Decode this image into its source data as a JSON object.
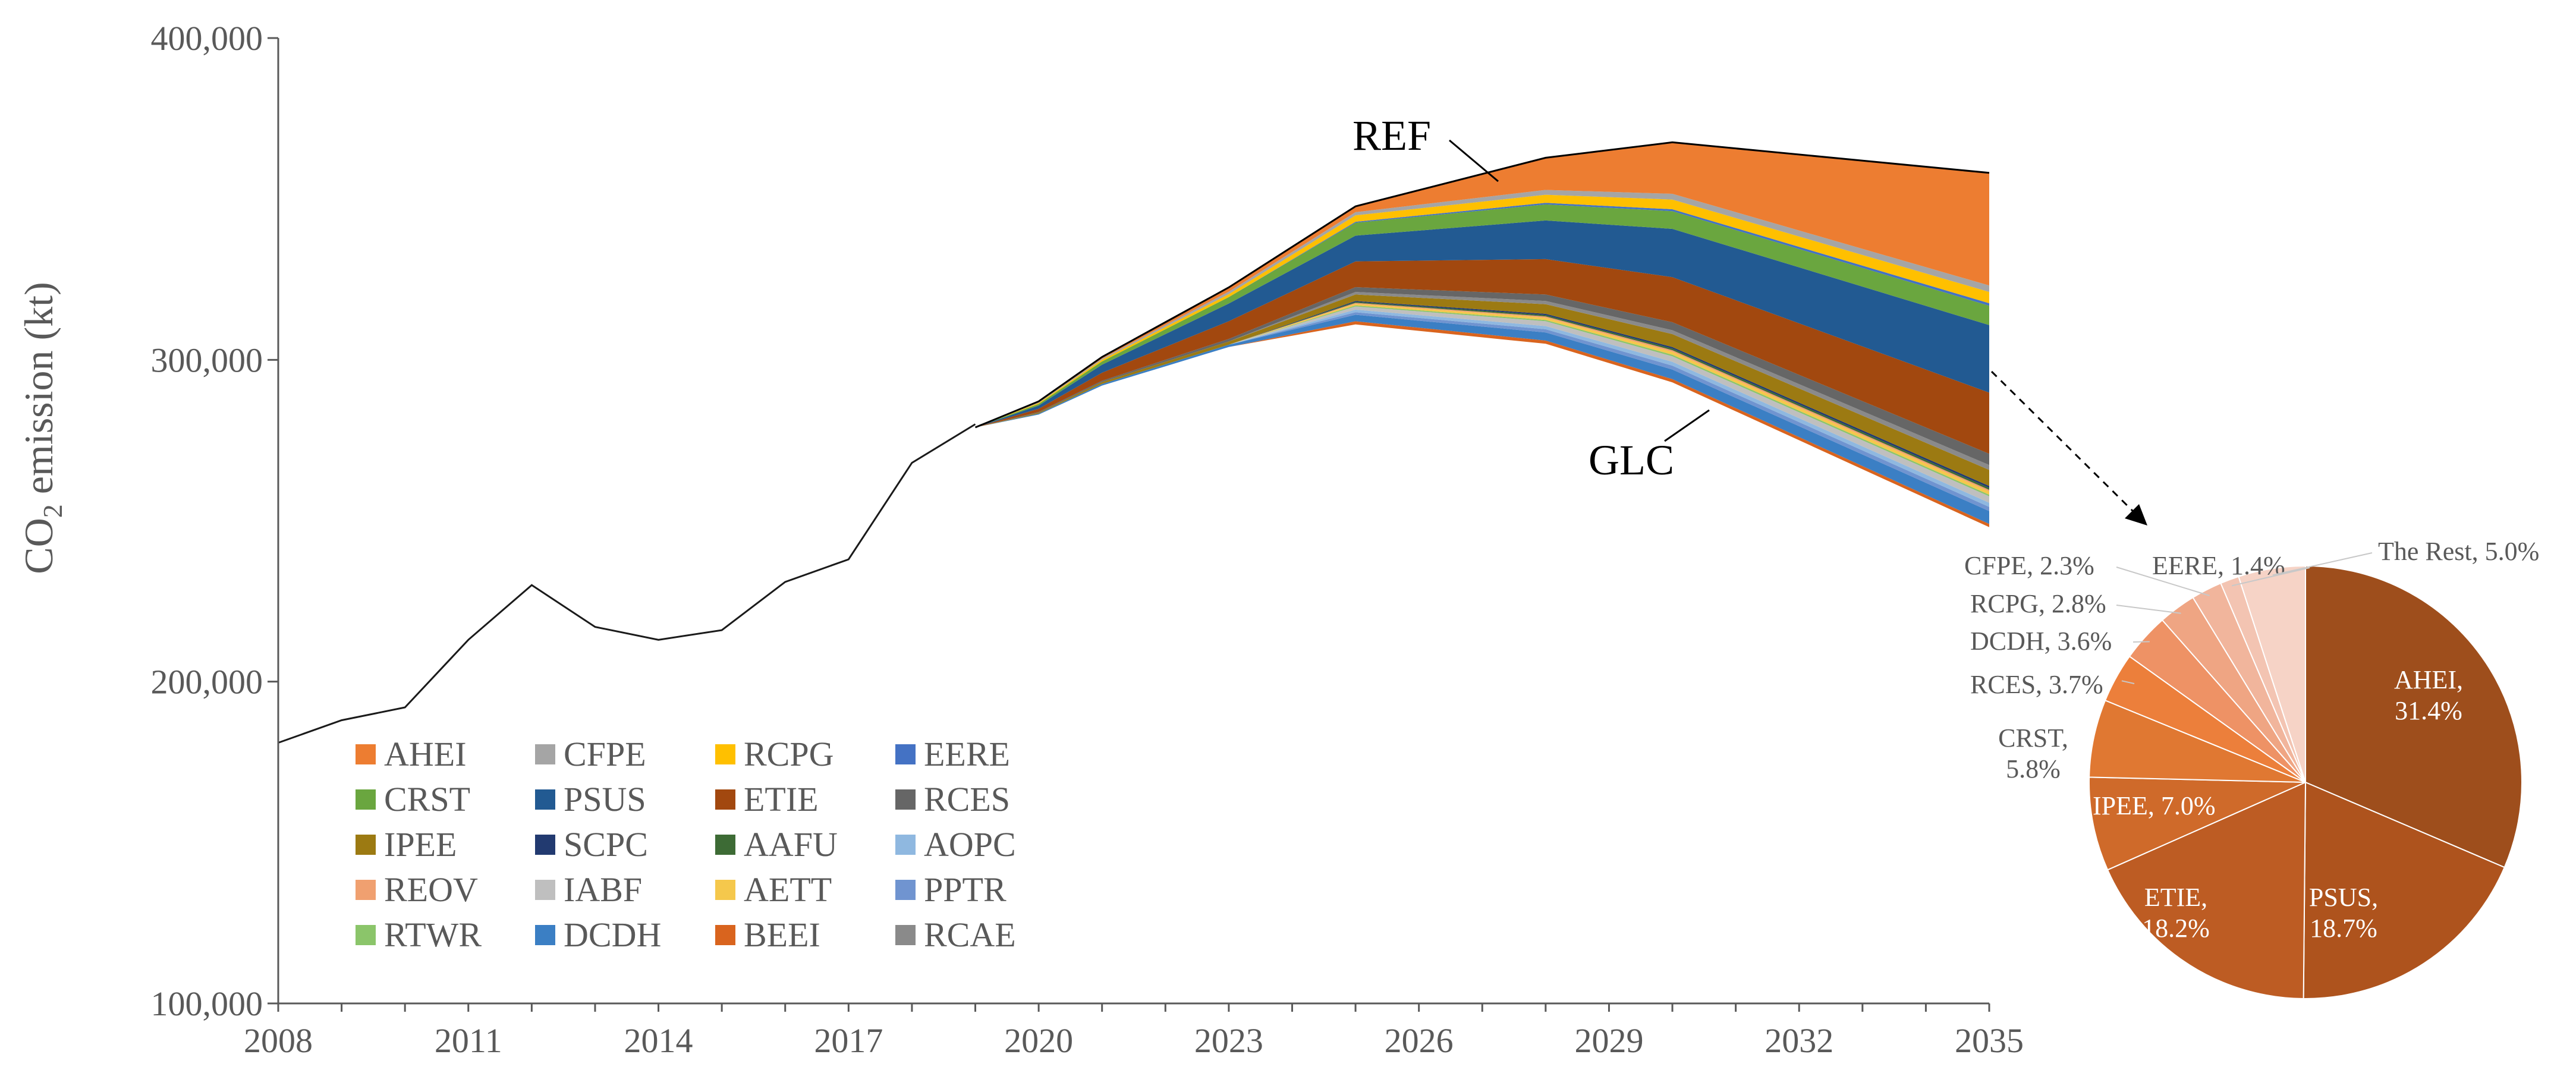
{
  "chart_data": [
    {
      "type": "area",
      "title": "",
      "ylabel": "CO2 emission (kt)",
      "ylabel_main": "CO",
      "ylabel_sub": "2",
      "ylabel_rest": " emission (kt)",
      "xlabel": "",
      "xlim": [
        2008,
        2035
      ],
      "ylim": [
        100000,
        400000
      ],
      "x_ticks": [
        2008,
        2011,
        2014,
        2017,
        2020,
        2023,
        2026,
        2029,
        2032,
        2035
      ],
      "x_tick_labels": [
        "2008",
        "2011",
        "2014",
        "2017",
        "2020",
        "2023",
        "2026",
        "2029",
        "2032",
        "2035"
      ],
      "y_ticks": [
        100000,
        200000,
        300000,
        400000
      ],
      "y_tick_labels": [
        "100,000",
        "200,000",
        "300,000",
        "400,000"
      ],
      "historical_line": {
        "x": [
          2008,
          2009,
          2010,
          2011,
          2012,
          2013,
          2014,
          2015,
          2016,
          2017,
          2018,
          2019
        ],
        "y": [
          181000,
          188000,
          192000,
          213000,
          230000,
          217000,
          213000,
          216000,
          231000,
          238000,
          268000,
          280000
        ]
      },
      "projection_x": [
        2019,
        2020,
        2021,
        2022,
        2023,
        2025,
        2028,
        2030,
        2035
      ],
      "glc_line": [
        279000,
        283000,
        292000,
        298000,
        304000,
        311000,
        305000,
        293000,
        248000
      ],
      "series": [
        {
          "name": "BEEI",
          "color": "#d9641e",
          "values": [
            0,
            0,
            0,
            0,
            0,
            1000,
            1000,
            1000,
            1000
          ]
        },
        {
          "name": "DCDH",
          "color": "#3b7fc4",
          "values": [
            0,
            300,
            500,
            600,
            700,
            2000,
            2500,
            3000,
            4000
          ]
        },
        {
          "name": "PPTR",
          "color": "#7094d0",
          "values": [
            0,
            0,
            0,
            0,
            0,
            800,
            1000,
            1200,
            1300
          ]
        },
        {
          "name": "AOPC",
          "color": "#8fb8e0",
          "values": [
            0,
            0,
            0,
            0,
            0,
            800,
            1000,
            1200,
            1300
          ]
        },
        {
          "name": "IABF",
          "color": "#bfbfbf",
          "values": [
            0,
            0,
            0,
            0,
            0,
            1000,
            1500,
            1700,
            2000
          ]
        },
        {
          "name": "RTWR",
          "color": "#8bc56a",
          "values": [
            0,
            0,
            0,
            0,
            0,
            300,
            400,
            500,
            500
          ]
        },
        {
          "name": "AETT",
          "color": "#f5c84c",
          "values": [
            0,
            0,
            0,
            0,
            0,
            500,
            700,
            900,
            1000
          ]
        },
        {
          "name": "REOV",
          "color": "#f0a070",
          "values": [
            0,
            0,
            0,
            0,
            0,
            300,
            400,
            500,
            500
          ]
        },
        {
          "name": "AAFU",
          "color": "#3d6b35",
          "values": [
            0,
            0,
            0,
            0,
            0,
            300,
            400,
            500,
            600
          ]
        },
        {
          "name": "SCPC",
          "color": "#223a70",
          "values": [
            0,
            0,
            0,
            0,
            0,
            300,
            400,
            500,
            600
          ]
        },
        {
          "name": "IPEE",
          "color": "#9c7a12",
          "values": [
            0,
            300,
            600,
            800,
            1000,
            2000,
            3000,
            4000,
            5000
          ]
        },
        {
          "name": "RCAE",
          "color": "#8a8a8a",
          "values": [
            0,
            0,
            0,
            0,
            0,
            800,
            1000,
            1200,
            1500
          ]
        },
        {
          "name": "RCES",
          "color": "#666666",
          "values": [
            0,
            200,
            400,
            600,
            800,
            1500,
            2000,
            2500,
            3500
          ]
        },
        {
          "name": "ETIE",
          "color": "#a2480f",
          "values": [
            0,
            1000,
            2500,
            4000,
            5500,
            8000,
            11000,
            14000,
            19000
          ]
        },
        {
          "name": "PSUS",
          "color": "#225a92",
          "values": [
            0,
            1000,
            2500,
            4000,
            5500,
            8000,
            12000,
            15000,
            21000
          ]
        },
        {
          "name": "CRST",
          "color": "#6aa63f",
          "values": [
            0,
            500,
            1000,
            1500,
            2000,
            4000,
            5000,
            5500,
            6000
          ]
        },
        {
          "name": "EERE",
          "color": "#4472c4",
          "values": [
            0,
            0,
            0,
            0,
            0,
            300,
            500,
            600,
            800
          ]
        },
        {
          "name": "RCPG",
          "color": "#ffc000",
          "values": [
            0,
            300,
            500,
            700,
            900,
            2000,
            2500,
            3000,
            3500
          ]
        },
        {
          "name": "CFPE",
          "color": "#a5a5a5",
          "values": [
            0,
            200,
            400,
            600,
            800,
            1000,
            1500,
            1800,
            2000
          ]
        },
        {
          "name": "AHEI",
          "color": "#ed7d31",
          "values": [
            0,
            300,
            500,
            900,
            1300,
            1800,
            10000,
            16000,
            35000
          ]
        }
      ],
      "legend_order": [
        "AHEI",
        "CFPE",
        "RCPG",
        "EERE",
        "CRST",
        "PSUS",
        "ETIE",
        "RCES",
        "IPEE",
        "SCPC",
        "AAFU",
        "AOPC",
        "REOV",
        "IABF",
        "AETT",
        "PPTR",
        "RTWR",
        "DCDH",
        "BEEI",
        "RCAE"
      ],
      "legend_placement": "bottom-left",
      "annotations": [
        "REF",
        "GLC"
      ]
    },
    {
      "type": "pie",
      "title": "",
      "slices": [
        {
          "label": "AHEI",
          "value": 31.4,
          "text": "AHEI,",
          "pct": "31.4%",
          "color": "#9e4e1c"
        },
        {
          "label": "PSUS",
          "value": 18.7,
          "text": "PSUS,",
          "pct": "18.7%",
          "color": "#ae531d"
        },
        {
          "label": "ETIE",
          "value": 18.2,
          "text": "ETIE,",
          "pct": "18.2%",
          "color": "#bd5c23"
        },
        {
          "label": "IPEE",
          "value": 7.0,
          "text": "IPEE, 7.0%",
          "pct": "",
          "color": "#cf6a2a"
        },
        {
          "label": "CRST",
          "value": 5.8,
          "text": "CRST,",
          "pct": "5.8%",
          "color": "#e07832"
        },
        {
          "label": "RCES",
          "value": 3.7,
          "text": "RCES, 3.7%",
          "pct": "",
          "color": "#ec7f3b"
        },
        {
          "label": "DCDH",
          "value": 3.6,
          "text": "DCDH, 3.6%",
          "pct": "",
          "color": "#ee9265"
        },
        {
          "label": "RCPG",
          "value": 2.8,
          "text": "RCPG, 2.8%",
          "pct": "",
          "color": "#efa583"
        },
        {
          "label": "CFPE",
          "value": 2.3,
          "text": "CFPE, 2.3%",
          "pct": "",
          "color": "#f1b59c"
        },
        {
          "label": "EERE",
          "value": 1.4,
          "text": "EERE, 1.4%",
          "pct": "",
          "color": "#f3c4b2"
        },
        {
          "label": "The Rest",
          "value": 5.0,
          "text": "The Rest, 5.0%",
          "pct": "",
          "color": "#f6d3c6"
        }
      ]
    }
  ]
}
